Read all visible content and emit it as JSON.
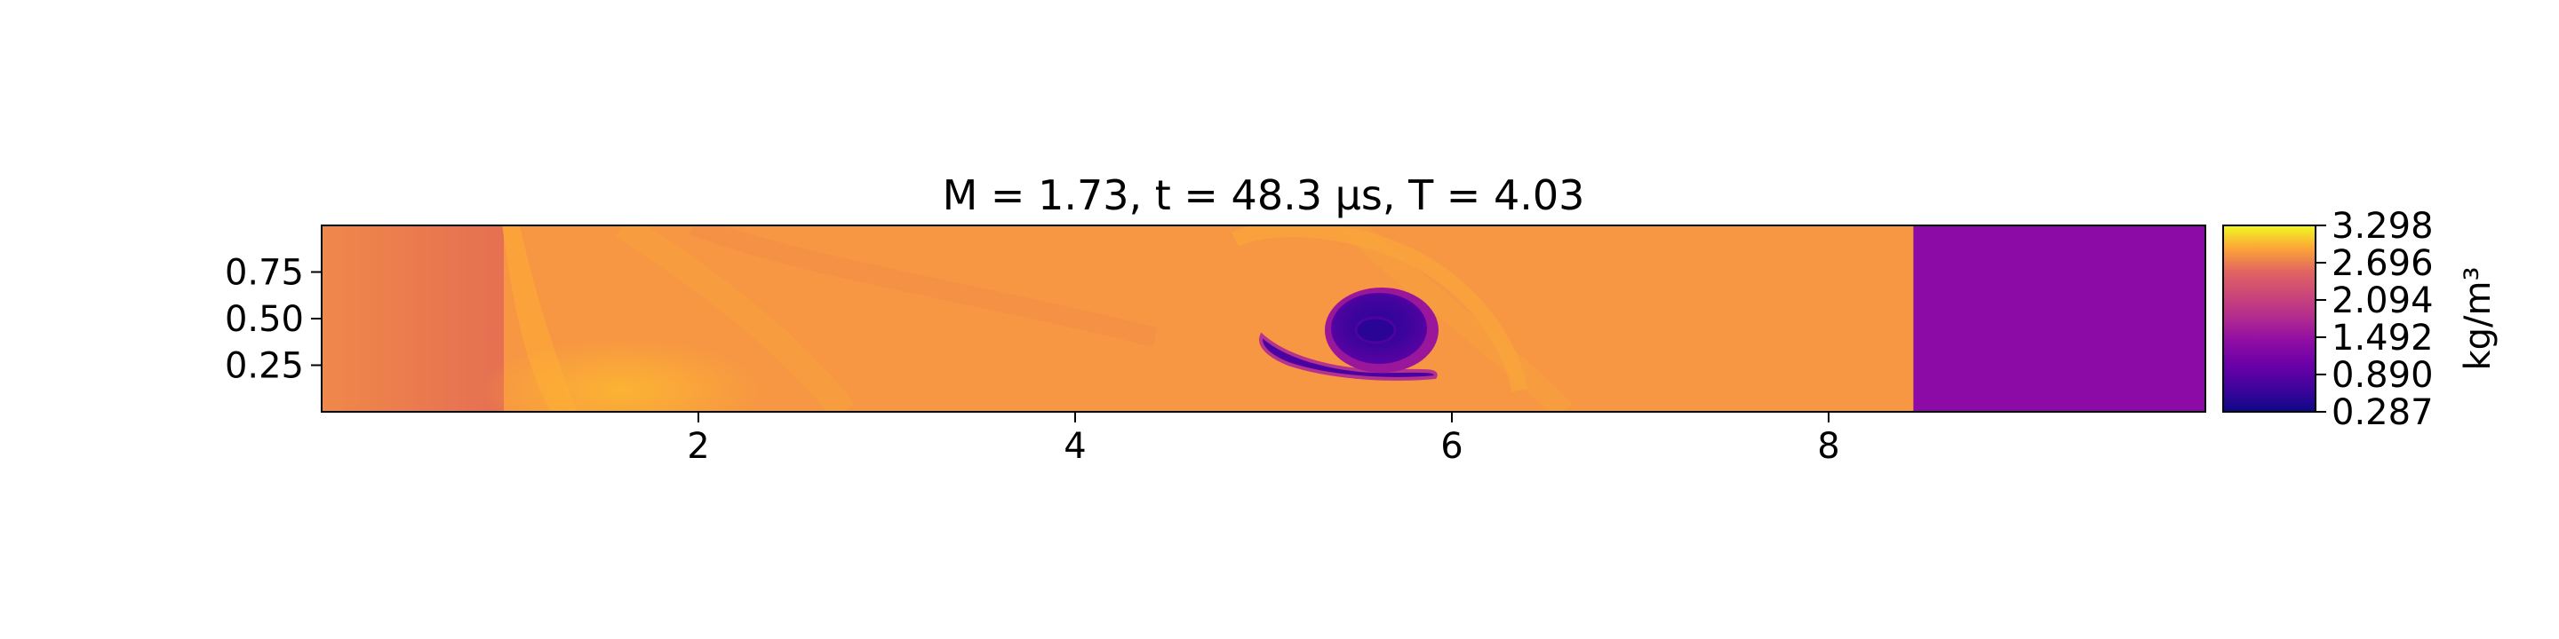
{
  "chart_data": {
    "type": "heatmap",
    "title": "M = 1.73, t = 48.3 μs, T = 4.03",
    "xlabel": "",
    "ylabel": "",
    "xlim": [
      0,
      10
    ],
    "ylim": [
      0,
      1
    ],
    "x_ticks": [
      2,
      4,
      6,
      8
    ],
    "x_tick_labels": [
      "2",
      "4",
      "6",
      "8"
    ],
    "y_ticks": [
      0.25,
      0.5,
      0.75
    ],
    "y_tick_labels": [
      "0.25",
      "0.50",
      "0.75"
    ],
    "grid": false,
    "colormap": "plasma",
    "colorbar": {
      "label": "kg/m³",
      "range": [
        0.287,
        3.298
      ],
      "ticks": [
        3.298,
        2.696,
        2.094,
        1.492,
        0.89,
        0.287
      ],
      "tick_labels": [
        "3.298",
        "2.696",
        "2.094",
        "1.492",
        "0.890",
        "0.287"
      ]
    },
    "features": {
      "shock_front_x": 8.45,
      "background_density_upstream": 1.2,
      "shocked_density": 2.35,
      "inlet_density": 2.05,
      "vortex_core": {
        "x": 5.75,
        "y": 0.45,
        "density": 0.5
      }
    },
    "colors": {
      "upstream": "#8c0aa5",
      "shocked": "#f79643",
      "inlet": "#e8704f",
      "bright": "#fdb42f",
      "core": "#3a049a"
    }
  }
}
